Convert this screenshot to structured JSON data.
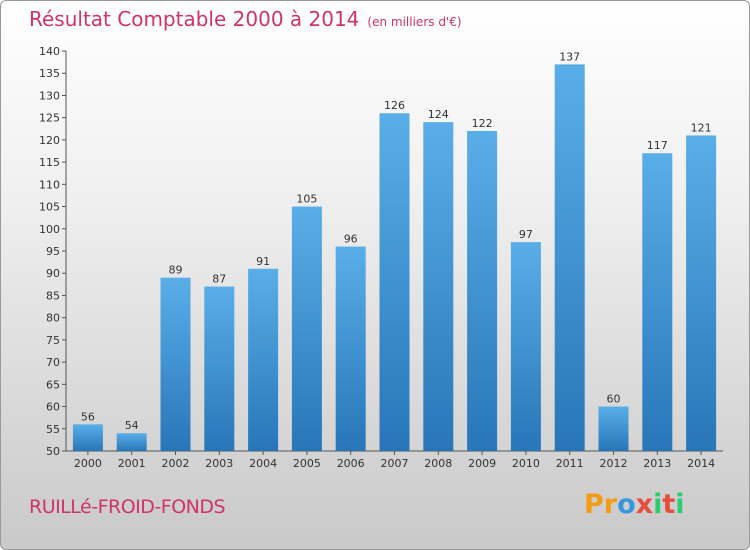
{
  "header": {
    "title": "Résultat Comptable 2000 à 2014",
    "unit": "(en milliers d'€)"
  },
  "footer": {
    "town": "RUILLé-FROID-FONDS",
    "logo": "Proxiti"
  },
  "colors": {
    "bar_top": "#5aaee8",
    "bar_bottom": "#2876b8",
    "title": "#d0336c"
  },
  "chart_data": {
    "type": "bar",
    "title": "Résultat Comptable 2000 à 2014",
    "subtitle": "(en milliers d'€)",
    "xlabel": "",
    "ylabel": "",
    "categories": [
      "2000",
      "2001",
      "2002",
      "2003",
      "2004",
      "2005",
      "2006",
      "2007",
      "2008",
      "2009",
      "2010",
      "2011",
      "2012",
      "2013",
      "2014"
    ],
    "values": [
      56,
      54,
      89,
      87,
      91,
      105,
      96,
      126,
      124,
      122,
      97,
      137,
      60,
      117,
      121
    ],
    "ylim": [
      50,
      140
    ],
    "yticks": [
      50,
      55,
      60,
      65,
      70,
      75,
      80,
      85,
      90,
      95,
      100,
      105,
      110,
      115,
      120,
      125,
      130,
      135,
      140
    ],
    "grid": false,
    "legend": "none"
  }
}
